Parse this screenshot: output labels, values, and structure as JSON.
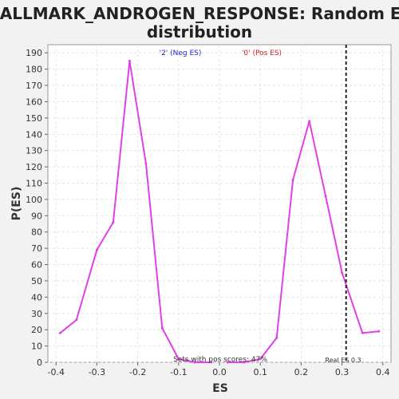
{
  "chart_data": {
    "type": "line",
    "title_line1": "HALLMARK_ANDROGEN_RESPONSE: Random ES",
    "title_line2": "distribution",
    "xlabel": "ES",
    "ylabel": "P(ES)",
    "xlim": [
      -0.42,
      0.42
    ],
    "ylim": [
      0,
      195
    ],
    "xticks": [
      -0.4,
      -0.3,
      -0.2,
      -0.1,
      0.0,
      0.1,
      0.2,
      0.3,
      0.4
    ],
    "xtick_labels": [
      "-0.4",
      "-0.3",
      "-0.2",
      "-0.1",
      "0.0",
      "0.1",
      "0.2",
      "0.3",
      "0.4"
    ],
    "yticks": [
      0,
      10,
      20,
      30,
      40,
      50,
      60,
      70,
      80,
      90,
      100,
      110,
      120,
      130,
      140,
      150,
      160,
      170,
      180,
      190
    ],
    "grid": true,
    "legend": {
      "neg_label": "'2' (Neg ES)",
      "pos_label": "'0' (Pos ES)",
      "neg_color": "#2222cc",
      "pos_color": "#cc2222"
    },
    "series": [
      {
        "color": "#e040e8",
        "x": [
          -0.39,
          -0.35,
          -0.3,
          -0.26,
          -0.22,
          -0.18,
          -0.14,
          -0.1,
          -0.06,
          -0.02
        ],
        "y": [
          18,
          26,
          69,
          86,
          185,
          122,
          21,
          2,
          0,
          0
        ]
      },
      {
        "color": "#e040e8",
        "x": [
          0.02,
          0.06,
          0.1,
          0.14,
          0.18,
          0.22,
          0.26,
          0.3,
          0.35,
          0.39
        ],
        "y": [
          0,
          0,
          2,
          15,
          112,
          148,
          102,
          55,
          18,
          19
        ]
      }
    ],
    "real_es": 0.3,
    "real_es_line_x": 0.31,
    "annotations": {
      "pos_scores": "Sets with pos scores: 47%",
      "real_es": "Real ES 0.3"
    }
  }
}
